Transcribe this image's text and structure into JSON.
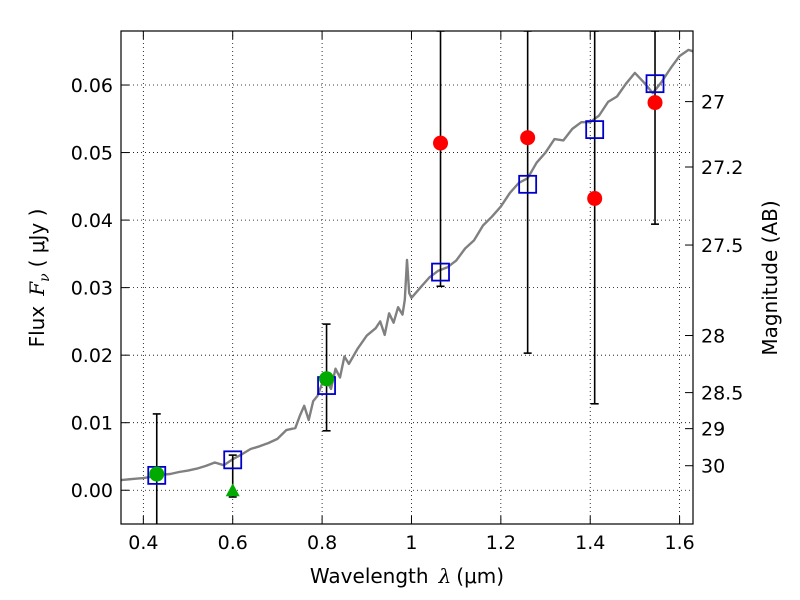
{
  "chart_data": {
    "type": "scatter",
    "xlabel": "Wavelength",
    "xlabel_symbol": "λ",
    "xlabel_unit": "(μm)",
    "ylabel": "Flux",
    "ylabel_symbol": "F",
    "ylabel_sub": "ν",
    "ylabel_unit": "( μJy )",
    "y2label": "Magnitude (AB)",
    "xlim": [
      0.35,
      1.63
    ],
    "ylim": [
      -0.005,
      0.068
    ],
    "grid": true,
    "x_ticks": [
      {
        "value": 0.4,
        "label": "0.4"
      },
      {
        "value": 0.6,
        "label": "0.6"
      },
      {
        "value": 0.8,
        "label": "0.8"
      },
      {
        "value": 1.0,
        "label": "1"
      },
      {
        "value": 1.2,
        "label": "1.2"
      },
      {
        "value": 1.4,
        "label": "1.4"
      },
      {
        "value": 1.6,
        "label": "1.6"
      }
    ],
    "y_ticks": [
      {
        "value": 0.0,
        "label": "0.00"
      },
      {
        "value": 0.01,
        "label": "0.01"
      },
      {
        "value": 0.02,
        "label": "0.02"
      },
      {
        "value": 0.03,
        "label": "0.03"
      },
      {
        "value": 0.04,
        "label": "0.04"
      },
      {
        "value": 0.05,
        "label": "0.05"
      },
      {
        "value": 0.06,
        "label": "0.06"
      }
    ],
    "y2_ticks": [
      {
        "mag": 27,
        "label": "27"
      },
      {
        "mag": 27.2,
        "label": "27.2"
      },
      {
        "mag": 27.5,
        "label": "27.5"
      },
      {
        "mag": 28,
        "label": "28"
      },
      {
        "mag": 28.5,
        "label": "28.5"
      },
      {
        "mag": 29,
        "label": "29"
      },
      {
        "mag": 30,
        "label": "30"
      }
    ],
    "model_spectrum": {
      "color": "#808080",
      "points": [
        [
          0.35,
          0.0015
        ],
        [
          0.38,
          0.0017
        ],
        [
          0.4,
          0.0018
        ],
        [
          0.42,
          0.002
        ],
        [
          0.44,
          0.0023
        ],
        [
          0.46,
          0.0024
        ],
        [
          0.48,
          0.0027
        ],
        [
          0.5,
          0.0029
        ],
        [
          0.52,
          0.0032
        ],
        [
          0.54,
          0.0036
        ],
        [
          0.56,
          0.0041
        ],
        [
          0.58,
          0.0037
        ],
        [
          0.6,
          0.0046
        ],
        [
          0.62,
          0.0053
        ],
        [
          0.64,
          0.0061
        ],
        [
          0.66,
          0.0065
        ],
        [
          0.68,
          0.007
        ],
        [
          0.7,
          0.0076
        ],
        [
          0.72,
          0.0089
        ],
        [
          0.74,
          0.0092
        ],
        [
          0.75,
          0.011
        ],
        [
          0.76,
          0.0125
        ],
        [
          0.77,
          0.0104
        ],
        [
          0.78,
          0.0132
        ],
        [
          0.79,
          0.014
        ],
        [
          0.8,
          0.0158
        ],
        [
          0.81,
          0.0163
        ],
        [
          0.82,
          0.015
        ],
        [
          0.83,
          0.018
        ],
        [
          0.84,
          0.0167
        ],
        [
          0.85,
          0.0198
        ],
        [
          0.86,
          0.0187
        ],
        [
          0.88,
          0.021
        ],
        [
          0.9,
          0.0229
        ],
        [
          0.92,
          0.024
        ],
        [
          0.93,
          0.025
        ],
        [
          0.94,
          0.023
        ],
        [
          0.95,
          0.0262
        ],
        [
          0.96,
          0.0248
        ],
        [
          0.97,
          0.0271
        ],
        [
          0.98,
          0.026
        ],
        [
          0.985,
          0.0282
        ],
        [
          0.99,
          0.0341
        ],
        [
          0.995,
          0.0292
        ],
        [
          1.0,
          0.0285
        ],
        [
          1.02,
          0.03
        ],
        [
          1.04,
          0.0315
        ],
        [
          1.06,
          0.0325
        ],
        [
          1.08,
          0.033
        ],
        [
          1.1,
          0.034
        ],
        [
          1.12,
          0.0358
        ],
        [
          1.14,
          0.037
        ],
        [
          1.16,
          0.0392
        ],
        [
          1.18,
          0.0405
        ],
        [
          1.2,
          0.042
        ],
        [
          1.22,
          0.044
        ],
        [
          1.24,
          0.0455
        ],
        [
          1.26,
          0.0462
        ],
        [
          1.28,
          0.0485
        ],
        [
          1.3,
          0.05
        ],
        [
          1.32,
          0.052
        ],
        [
          1.34,
          0.0518
        ],
        [
          1.36,
          0.0535
        ],
        [
          1.38,
          0.0545
        ],
        [
          1.4,
          0.0545
        ],
        [
          1.42,
          0.0555
        ],
        [
          1.44,
          0.0575
        ],
        [
          1.46,
          0.0583
        ],
        [
          1.48,
          0.0602
        ],
        [
          1.5,
          0.0618
        ],
        [
          1.52,
          0.0604
        ],
        [
          1.54,
          0.0588
        ],
        [
          1.56,
          0.0605
        ],
        [
          1.58,
          0.0625
        ],
        [
          1.6,
          0.0643
        ],
        [
          1.62,
          0.0652
        ],
        [
          1.63,
          0.065
        ]
      ]
    },
    "model_photometry": {
      "marker": "open-square",
      "color": "#0000cc",
      "points": [
        [
          0.43,
          0.0022
        ],
        [
          0.6,
          0.0045
        ],
        [
          0.81,
          0.0155
        ],
        [
          1.065,
          0.0323
        ],
        [
          1.26,
          0.0453
        ],
        [
          1.41,
          0.0534
        ],
        [
          1.545,
          0.0602
        ]
      ]
    },
    "detections": {
      "marker": "circle",
      "color": "#00aa00",
      "points": [
        [
          0.43,
          0.0024
        ],
        [
          0.81,
          0.0165
        ]
      ]
    },
    "upper_limit_detection": {
      "marker": "triangle",
      "color": "#00aa00",
      "points": [
        [
          0.6,
          0.0
        ]
      ]
    },
    "nondetections": {
      "marker": "circle",
      "color": "#ff0000",
      "points": [
        [
          1.065,
          0.0514
        ],
        [
          1.26,
          0.0522
        ],
        [
          1.41,
          0.0432
        ],
        [
          1.545,
          0.0574
        ]
      ]
    },
    "error_bars": [
      {
        "x": 0.43,
        "low": -0.008,
        "high": 0.0113
      },
      {
        "x": 0.6,
        "low": -0.001,
        "high": 0.0052
      },
      {
        "x": 0.81,
        "low": 0.0088,
        "high": 0.0246
      },
      {
        "x": 1.065,
        "low": 0.0302,
        "high": 0.068
      },
      {
        "x": 1.26,
        "low": 0.0203,
        "high": 0.068
      },
      {
        "x": 1.41,
        "low": 0.0128,
        "high": 0.068
      },
      {
        "x": 1.545,
        "low": 0.0394,
        "high": 0.068
      }
    ]
  }
}
